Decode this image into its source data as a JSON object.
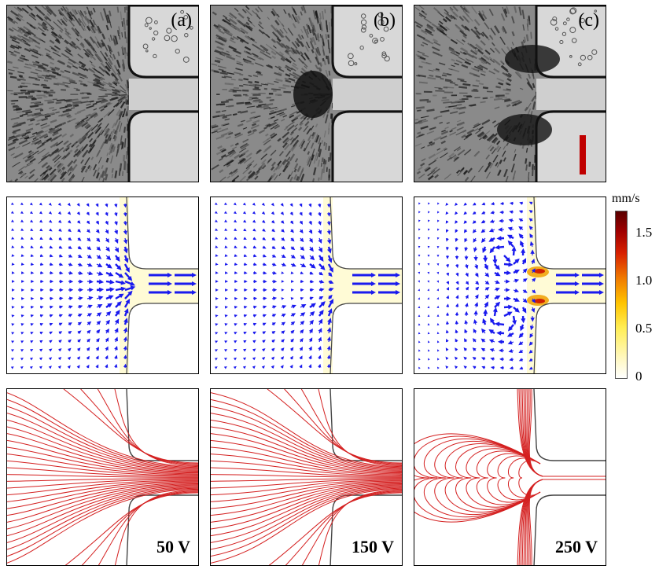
{
  "photo_labels": [
    "(a)",
    "(b)",
    "(c)"
  ],
  "voltage_labels": [
    "50 V",
    "150 V",
    "250 V"
  ],
  "colorbar": {
    "unit": "mm/s",
    "ticks": [
      "1.5",
      "1.0",
      "0.5",
      "0"
    ]
  },
  "colors": {
    "arrows": "#1a1aee",
    "streamlines": "#d42020",
    "scale_bar": "#c00000",
    "channel_fill": "#fffbd6"
  }
}
